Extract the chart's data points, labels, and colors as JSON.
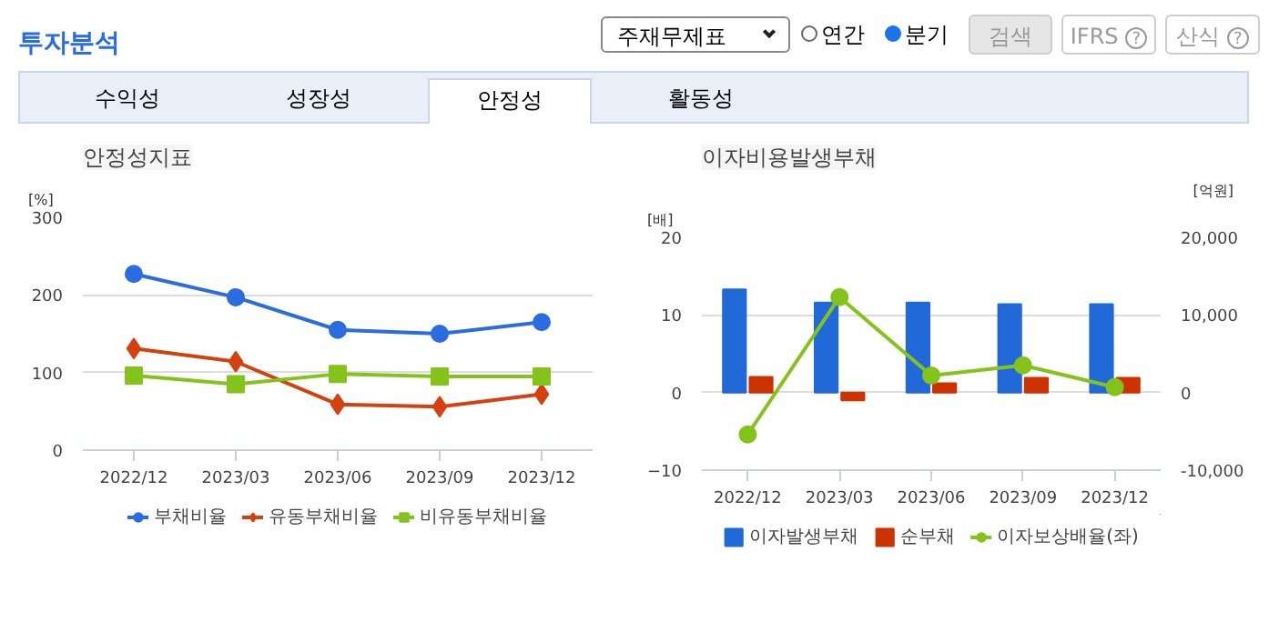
{
  "chart_data": [
    {
      "type": "other",
      "title": "투자분석",
      "annotations": [
        "주재무제표",
        "연간",
        "분기",
        "검색",
        "IFRS",
        "?",
        "산식",
        "?",
        "수익성",
        "성장성",
        "안정성",
        "활동성"
      ]
    },
    {
      "type": "line",
      "title": "안정성지표",
      "ylabel": "[%]",
      "categories": [
        "2022/12",
        "2023/03",
        "2023/06",
        "2023/09",
        "2023/12"
      ],
      "ylim": [
        0,
        300
      ],
      "yticks": [
        0,
        100,
        200,
        300
      ],
      "grid": "y",
      "legend": "bottom",
      "series": [
        {
          "name": "부채비율",
          "color": "#2b6de0",
          "marker": "circle",
          "values": [
            227,
            197,
            155,
            150,
            165
          ]
        },
        {
          "name": "유동부채비율",
          "color": "#d4410f",
          "marker": "diamond",
          "values": [
            131,
            114,
            59,
            56,
            72
          ]
        },
        {
          "name": "비유동부채비율",
          "color": "#84c31a",
          "marker": "square",
          "values": [
            96,
            85,
            98,
            95,
            95
          ]
        }
      ]
    },
    {
      "type": "bar",
      "title": "이자비용발생부채",
      "ylabel": "[배]",
      "y2label": "[억원]",
      "categories": [
        "2022/12",
        "2023/03",
        "2023/06",
        "2023/09",
        "2023/12"
      ],
      "ylim": [
        -10,
        20
      ],
      "yticks": [
        -10,
        0,
        10,
        20
      ],
      "y2lim": [
        -10000,
        20000
      ],
      "y2ticks": [
        {
          "value": -10000,
          "label": "-10,000"
        },
        0,
        {
          "value": 10000,
          "label": "10,000"
        },
        {
          "value": 20000,
          "label": "20,000"
        }
      ],
      "grid": "y",
      "legend": "bottom",
      "series": [
        {
          "name": "이자발생부채",
          "color": "#2169d9",
          "axis": "y2",
          "values": [
            13300,
            11600,
            11600,
            11400,
            11400
          ]
        },
        {
          "name": "순부채",
          "color": "#cc3300",
          "axis": "y2",
          "values": [
            2000,
            -1000,
            1200,
            1900,
            1900
          ]
        },
        {
          "name": "이자보상배율(좌)",
          "color": "#84c31a",
          "type": "line",
          "marker": "circle",
          "values": [
            -5.4,
            12.3,
            2.2,
            3.5,
            0.7
          ]
        }
      ]
    }
  ]
}
